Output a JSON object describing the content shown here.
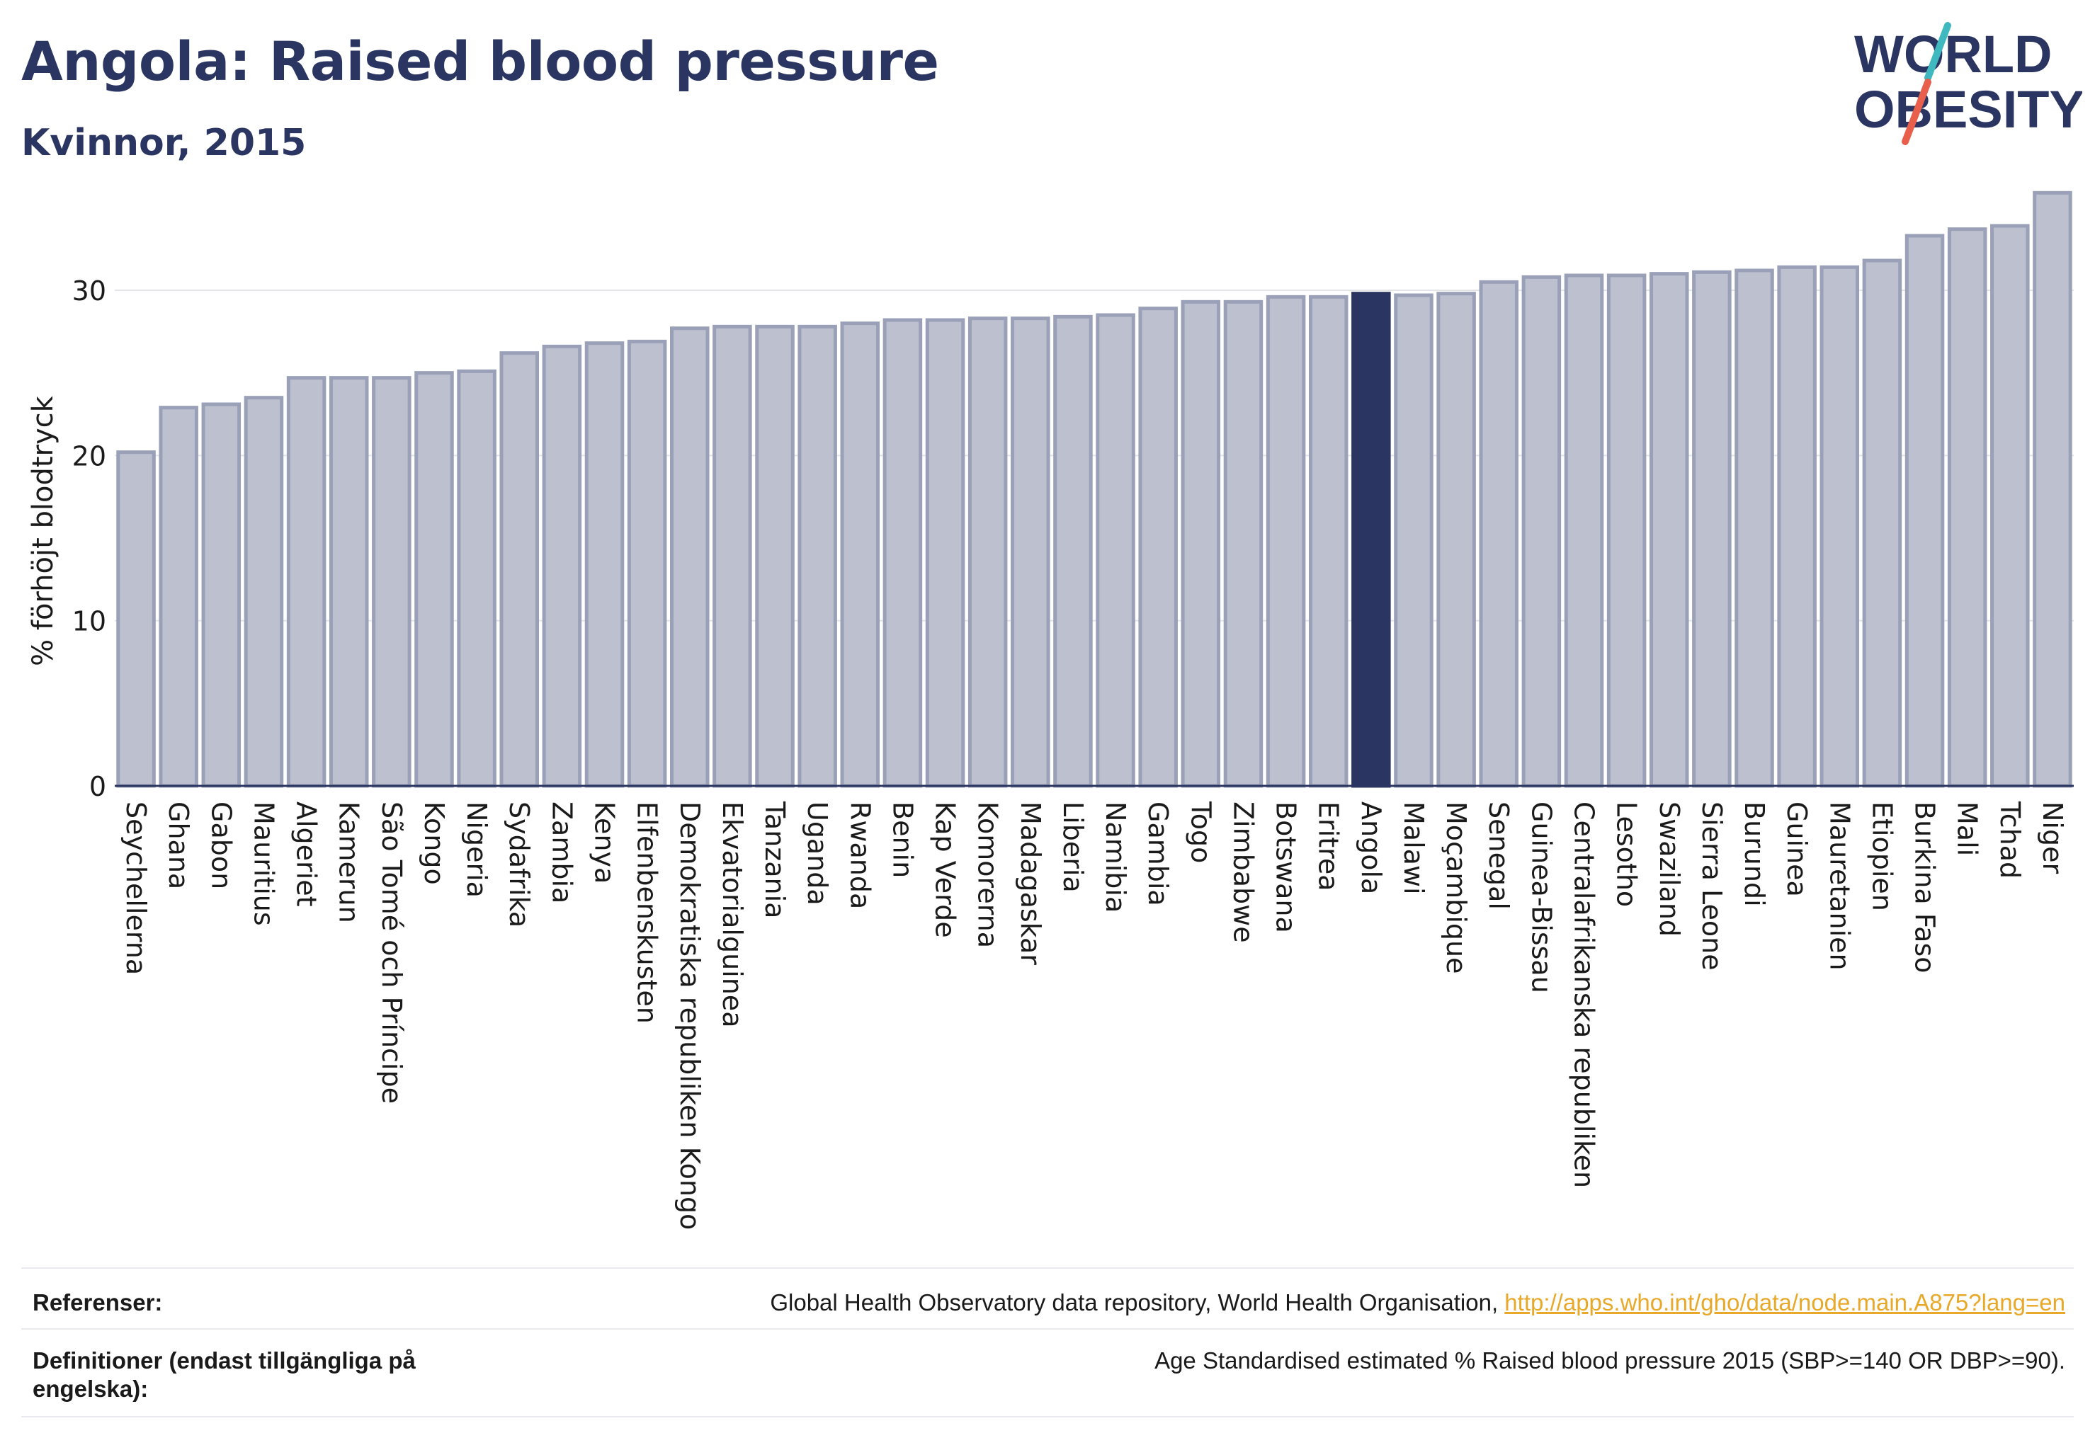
{
  "header": {
    "title": "Angola: Raised blood pressure",
    "subtitle": "Kvinnor, 2015"
  },
  "logo": {
    "line1": "WORLD",
    "line2": "OBESITY",
    "slash_colors": [
      "#3fb8c0",
      "#e8604c"
    ]
  },
  "colors": {
    "bar": "#bcc0cf",
    "bar_border": "#9aa0b8",
    "highlight": "#2b3561",
    "text": "#2b3561",
    "link": "#e8a92b"
  },
  "chart_data": {
    "type": "bar",
    "ylabel": "% förhöjt blodtryck",
    "ylim": [
      0,
      36
    ],
    "yticks": [
      0,
      10,
      20,
      30
    ],
    "grid": true,
    "highlight": "Angola",
    "categories": [
      "Seychellerna",
      "Ghana",
      "Gabon",
      "Mauritius",
      "Algeriet",
      "Kamerun",
      "São Tomé och Príncipe",
      "Kongo",
      "Nigeria",
      "Sydafrika",
      "Zambia",
      "Kenya",
      "Elfenbenskusten",
      "Demokratiska republiken Kongo",
      "Ekvatorialguinea",
      "Tanzania",
      "Uganda",
      "Rwanda",
      "Benin",
      "Kap Verde",
      "Komorerna",
      "Madagaskar",
      "Liberia",
      "Namibia",
      "Gambia",
      "Togo",
      "Zimbabwe",
      "Botswana",
      "Eritrea",
      "Angola",
      "Malawi",
      "Moçambique",
      "Senegal",
      "Guinea-Bissau",
      "Centralafrikanska republiken",
      "Lesotho",
      "Swaziland",
      "Sierra Leone",
      "Burundi",
      "Guinea",
      "Mauretanien",
      "Etiopien",
      "Burkina Faso",
      "Mali",
      "Tchad",
      "Niger"
    ],
    "values": [
      20.2,
      22.9,
      23.1,
      23.5,
      24.7,
      24.7,
      24.7,
      25.0,
      25.1,
      26.2,
      26.6,
      26.8,
      26.9,
      27.7,
      27.8,
      27.8,
      27.8,
      28.0,
      28.2,
      28.2,
      28.3,
      28.3,
      28.4,
      28.5,
      28.9,
      29.3,
      29.3,
      29.6,
      29.6,
      29.8,
      29.7,
      29.8,
      30.5,
      30.8,
      30.9,
      30.9,
      31.0,
      31.1,
      31.2,
      31.4,
      31.4,
      31.8,
      33.3,
      33.7,
      33.9,
      35.9
    ]
  },
  "footer": {
    "references_label": "Referenser:",
    "references_text": "Global Health Observatory data repository, World Health Organisation, ",
    "references_link": "http://apps.who.int/gho/data/node.main.A875?lang=en",
    "definitions_label": "Definitioner (endast tillgängliga på engelska):",
    "definitions_text": "Age Standardised estimated % Raised blood pressure 2015 (SBP>=140 OR DBP>=90)."
  }
}
